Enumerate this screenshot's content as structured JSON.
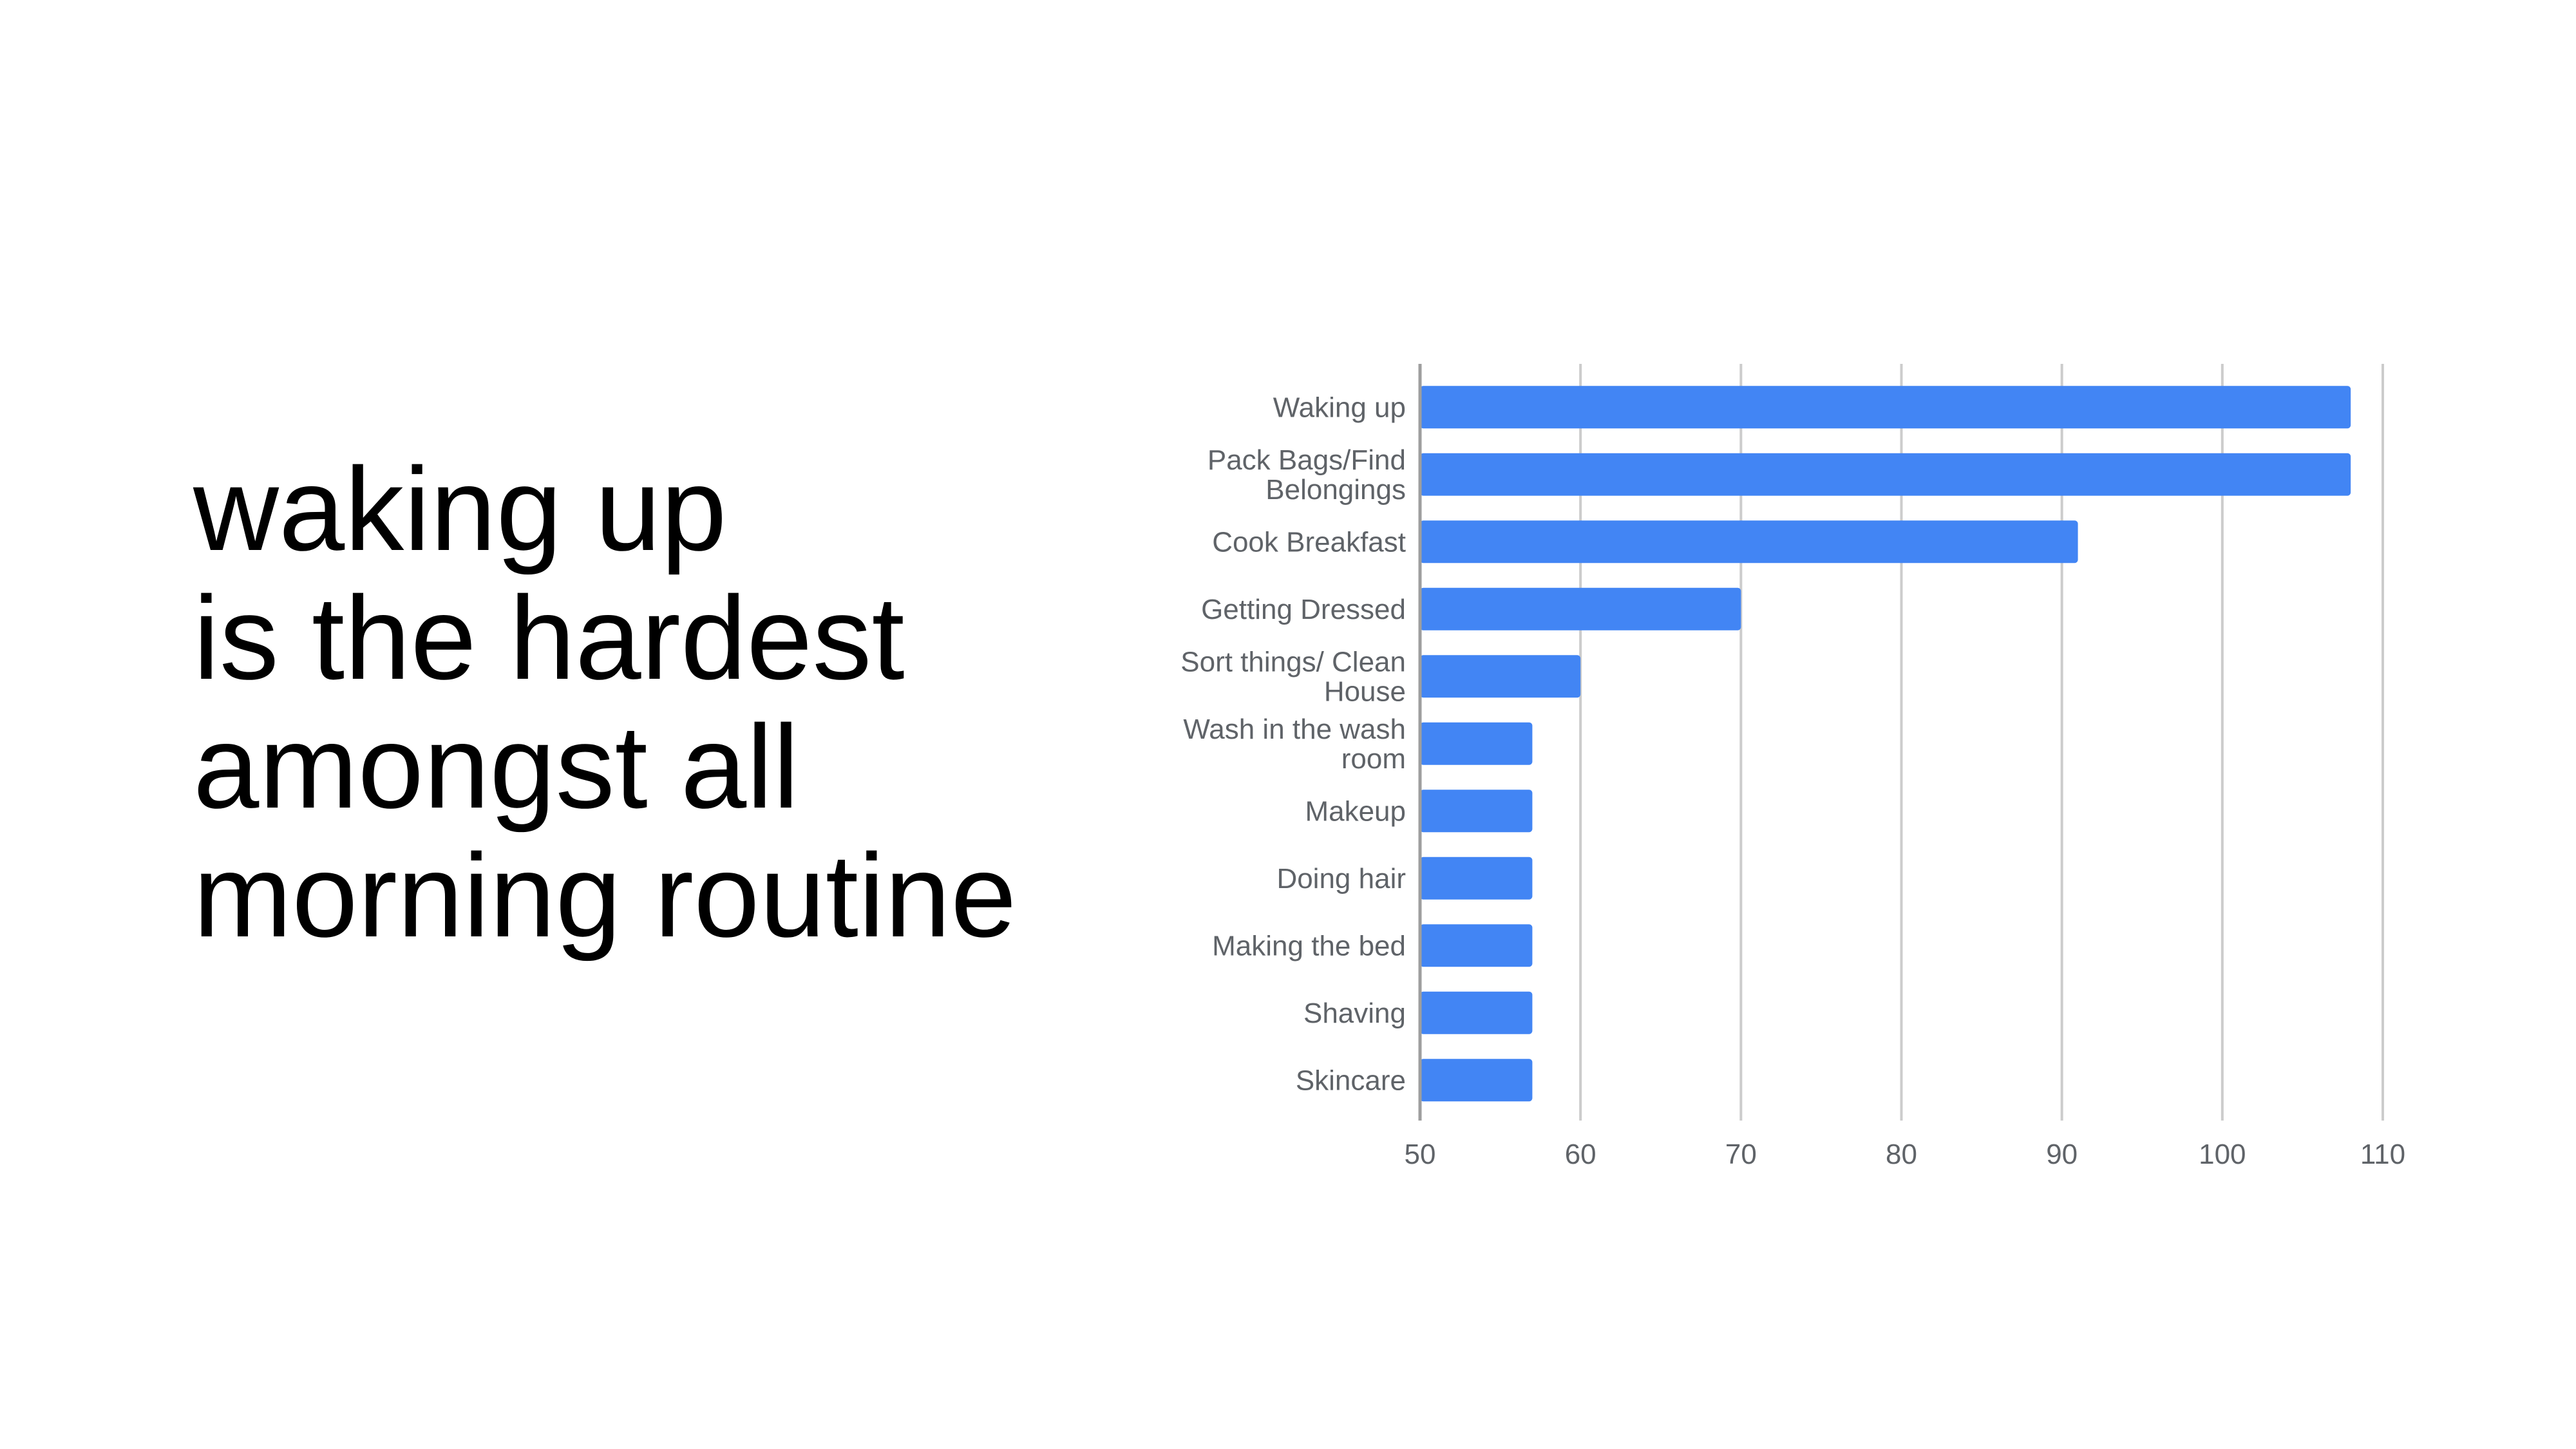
{
  "headline": {
    "lines": [
      "waking up",
      "is the hardest",
      "amongst all",
      "morning routine"
    ]
  },
  "chart_data": {
    "type": "bar",
    "orientation": "horizontal",
    "categories": [
      "Waking up",
      "Pack Bags/Find Belongings",
      "Cook Breakfast",
      "Getting Dressed",
      "Sort things/ Clean House",
      "Wash in the wash room",
      "Makeup",
      "Doing hair",
      "Making the bed",
      "Shaving",
      "Skincare"
    ],
    "category_label_lines": [
      [
        "Waking up"
      ],
      [
        "Pack Bags/Find",
        "Belongings"
      ],
      [
        "Cook Breakfast"
      ],
      [
        "Getting Dressed"
      ],
      [
        "Sort things/ Clean",
        "House"
      ],
      [
        "Wash in the wash",
        "room"
      ],
      [
        "Makeup"
      ],
      [
        "Doing hair"
      ],
      [
        "Making the bed"
      ],
      [
        "Shaving"
      ],
      [
        "Skincare"
      ]
    ],
    "values": [
      108,
      108,
      91,
      70,
      60,
      57,
      57,
      57,
      57,
      57,
      57
    ],
    "xlim": [
      50,
      110
    ],
    "xticks": [
      50,
      60,
      70,
      80,
      90,
      100,
      110
    ],
    "title": "",
    "xlabel": "",
    "ylabel": "",
    "grid": "vertical",
    "legend": "none",
    "colors": {
      "bar": "#4285f4",
      "grid": "#cccccc",
      "axis": "#9e9e9e",
      "text": "#5f6368"
    }
  }
}
